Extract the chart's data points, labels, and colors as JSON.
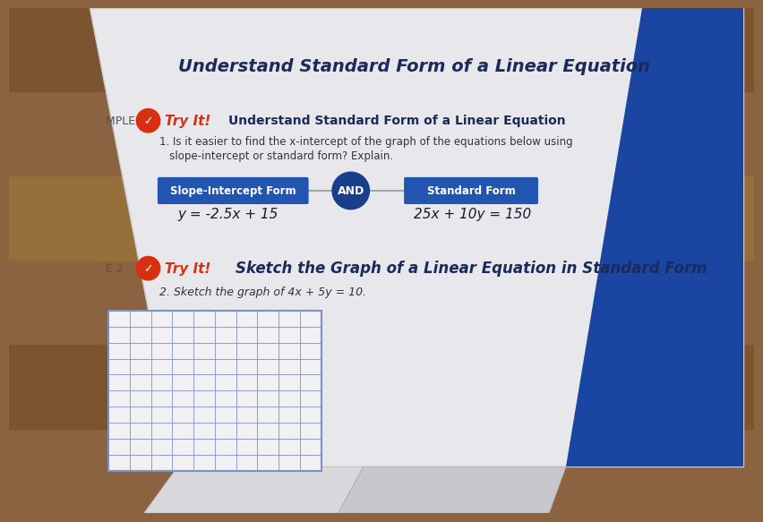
{
  "bg_wood_color": "#8B6340",
  "page_color": "#e8e8ec",
  "page_edge_color": "#d0d0d8",
  "blue_strip_color": "#1a45a0",
  "title_text": "Understand Standard Form of a Linear Equation",
  "title_color": "#1a1a2e",
  "mple1_label": "MPLE 1",
  "tryit_color": "#d63010",
  "q1_line1": "1. Is it easier to find the x-intercept of the graph of the equations below using",
  "q1_line2": "   slope-intercept or standard form? Explain.",
  "slope_intercept_label": "Slope-Intercept Form",
  "slope_intercept_eq": "y = -2.5x + 15",
  "standard_form_label": "Standard Form",
  "standard_form_eq": "25x + 10y = 150",
  "and_text": "AND",
  "blue_btn": "#2255b0",
  "blue_dark": "#1a3f8a",
  "mple2_label": "E 2",
  "section2_title": "Sketch the Graph of a Linear Equation in Standard Form",
  "q2_text": "2. Sketch the graph of 4x + 5y = 10.",
  "grid_color": "#8090c0",
  "tryit_header1": "Try It!  Understand Standard Form of a Linear Equation",
  "tryit_header2": "Try It!  Sketch the Graph of a Linear Equation in Standard Form"
}
